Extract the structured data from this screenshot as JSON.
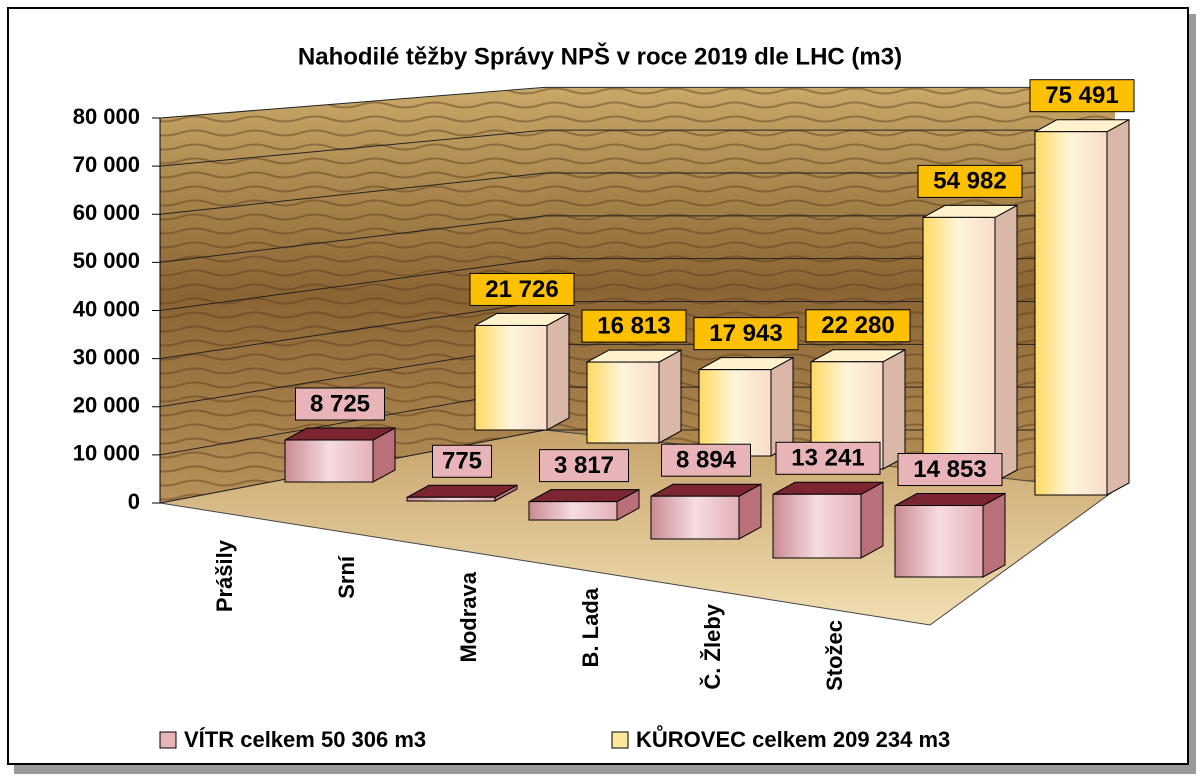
{
  "chart_data": {
    "type": "bar3d",
    "title": "Nahodilé těžby Správy NPŠ v roce 2019 dle LHC (m3)",
    "categories": [
      "Prášily",
      "Srní",
      "Modrava",
      "B. Lada",
      "Č. Žleby",
      "Stožec"
    ],
    "series": [
      {
        "name": "VÍTR celkem 50 306 m3",
        "color": "#e8b4b8",
        "values": [
          8725,
          775,
          3817,
          8894,
          13241,
          14853
        ],
        "value_labels": [
          "8 725",
          "775",
          "3 817",
          "8 894",
          "13 241",
          "14 853"
        ]
      },
      {
        "name": "KŮROVEC celkem 209 234 m3",
        "color": "#ffc000",
        "values": [
          21726,
          16813,
          17943,
          22280,
          54982,
          75491
        ],
        "value_labels": [
          "21 726",
          "16 813",
          "17 943",
          "22 280",
          "54 982",
          "75 491"
        ]
      }
    ],
    "ylim": [
      0,
      80000
    ],
    "yticks": [
      {
        "value": 0,
        "label": "0"
      },
      {
        "value": 10000,
        "label": "10 000"
      },
      {
        "value": 20000,
        "label": "20 000"
      },
      {
        "value": 30000,
        "label": "30 000"
      },
      {
        "value": 40000,
        "label": "40 000"
      },
      {
        "value": 50000,
        "label": "50 000"
      },
      {
        "value": 60000,
        "label": "60 000"
      },
      {
        "value": 70000,
        "label": "70 000"
      },
      {
        "value": 80000,
        "label": "80 000"
      }
    ],
    "grid": true
  }
}
